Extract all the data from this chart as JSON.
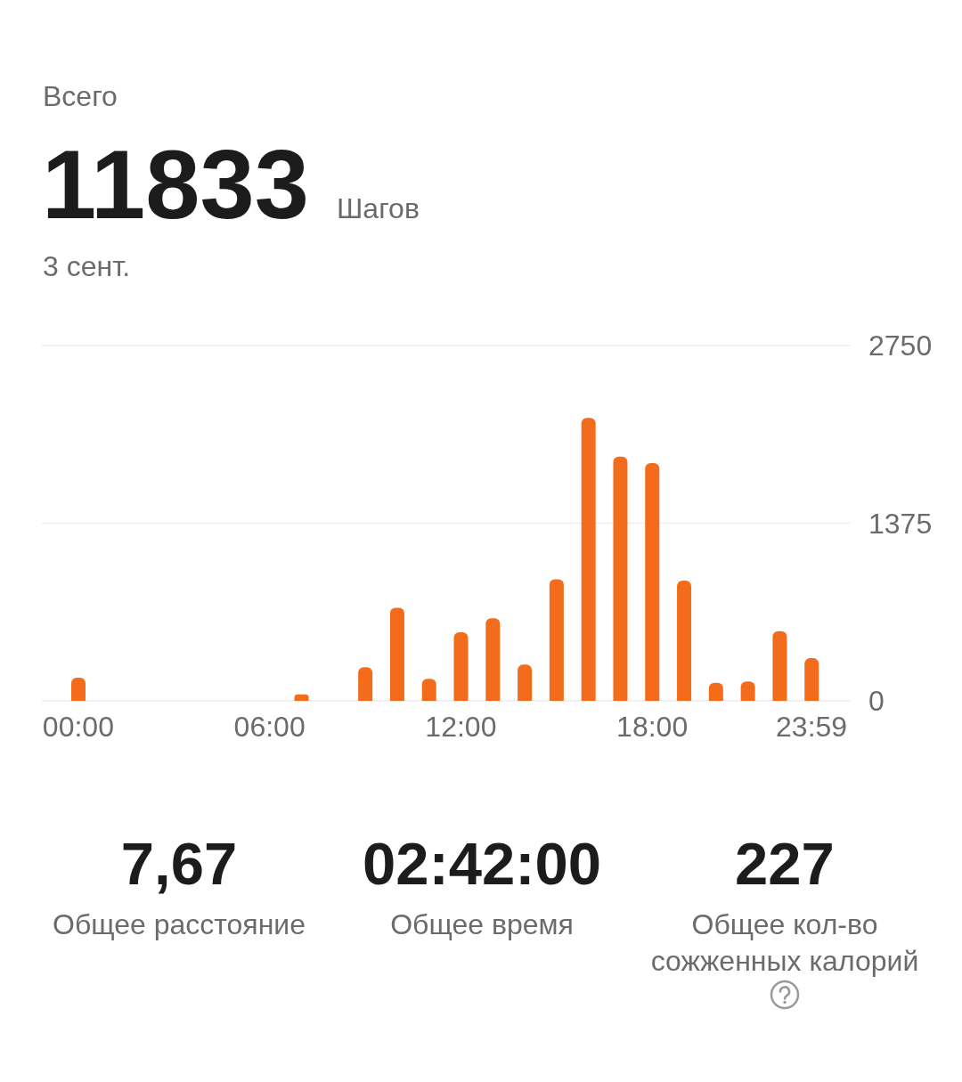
{
  "chart_data": {
    "type": "bar",
    "title": "Всего",
    "categories": [
      "00:00",
      null,
      null,
      null,
      null,
      null,
      "06:00",
      null,
      null,
      null,
      null,
      null,
      "12:00",
      null,
      null,
      null,
      null,
      null,
      "18:00",
      null,
      null,
      null,
      null,
      "23:59"
    ],
    "values": [
      180,
      0,
      0,
      0,
      0,
      0,
      0,
      50,
      0,
      260,
      720,
      170,
      530,
      640,
      280,
      940,
      2190,
      1890,
      1840,
      930,
      140,
      150,
      540,
      330
    ],
    "color": "#f36c1b",
    "ylim": [
      0,
      2750
    ],
    "yticks": [
      0,
      1375,
      2750
    ],
    "grid": "y",
    "annotations": [
      "11833",
      "Шагов",
      "3 сент.",
      "7,67",
      "Общее расстояние",
      "02:42:00",
      "Общее время",
      "227",
      "Общее кол-во сожженных калорий"
    ]
  }
}
